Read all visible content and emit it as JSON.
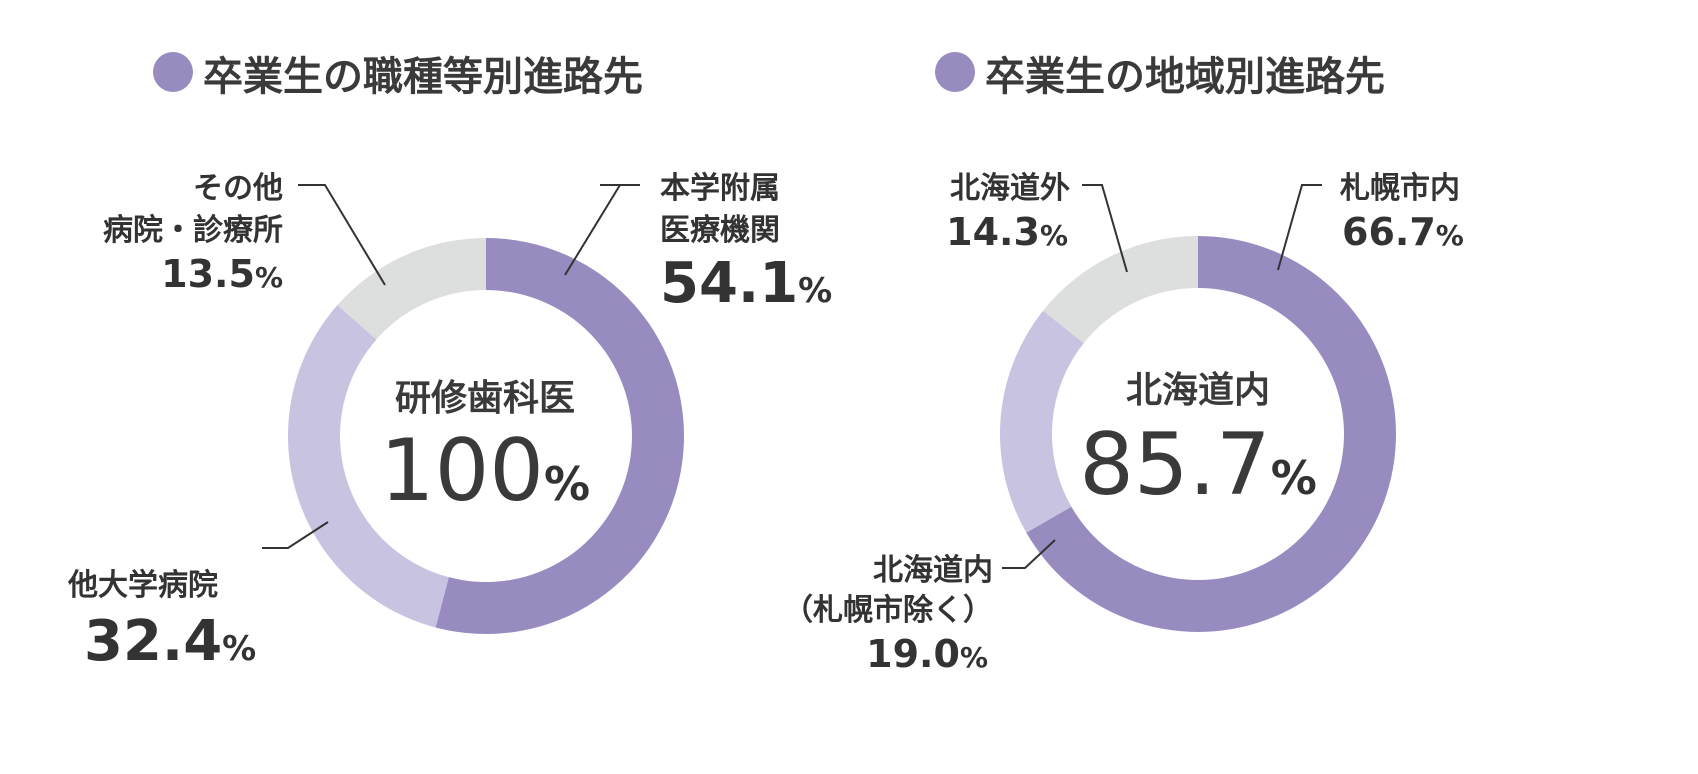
{
  "colors": {
    "dark": "#978bc0",
    "light": "#c8c3e1",
    "gray": "#dddfde",
    "bullet": "#978bc0"
  },
  "chart_data": [
    {
      "type": "pie",
      "title": "卒業生の職種等別進路先",
      "center_label": "研修歯科医",
      "center_value": "100",
      "center_unit": "%",
      "slices": [
        {
          "label_lines": [
            "本学附属",
            "医療機関"
          ],
          "value": 54.1,
          "value_text": "54.1",
          "unit": "%",
          "color": "#978bc0"
        },
        {
          "label_lines": [
            "他大学病院"
          ],
          "value": 32.4,
          "value_text": "32.4",
          "unit": "%",
          "color": "#c8c3e1"
        },
        {
          "label_lines": [
            "その他",
            "病院・診療所"
          ],
          "value": 13.5,
          "value_text": "13.5",
          "unit": "%",
          "color": "#dddfde"
        }
      ]
    },
    {
      "type": "pie",
      "title": "卒業生の地域別進路先",
      "center_label": "北海道内",
      "center_value": "85.7",
      "center_unit": "%",
      "slices": [
        {
          "label_lines": [
            "札幌市内"
          ],
          "value": 66.7,
          "value_text": "66.7",
          "unit": "%",
          "color": "#978bc0"
        },
        {
          "label_lines": [
            "北海道内",
            "（札幌市除く）"
          ],
          "value": 19.0,
          "value_text": "19.0",
          "unit": "%",
          "color": "#c8c3e1"
        },
        {
          "label_lines": [
            "北海道外"
          ],
          "value": 14.3,
          "value_text": "14.3",
          "unit": "%",
          "color": "#dddfde"
        }
      ]
    }
  ]
}
